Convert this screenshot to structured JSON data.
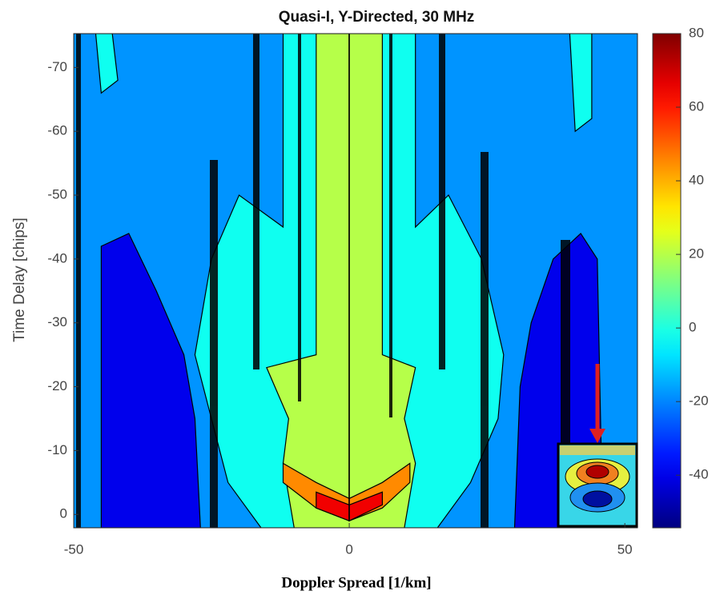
{
  "chart_data": {
    "type": "contour",
    "title": "Quasi-I, Y-Directed, 30 MHz",
    "xlabel": "Doppler Spread [1/km]",
    "ylabel": "Time Delay [chips]",
    "xlim": [
      -50,
      52.3
    ],
    "xticks": [
      -50,
      0,
      50
    ],
    "ylim": [
      2.1,
      -75.3
    ],
    "yticks": [
      0,
      -10,
      -20,
      -30,
      -40,
      -50,
      -60,
      -70
    ],
    "levels": [
      -40,
      -18,
      -2,
      20,
      45,
      65
    ],
    "colormap": "jet",
    "clim": [
      -54.3,
      80
    ],
    "cticks": [
      -40,
      -20,
      0,
      20,
      40,
      60,
      80
    ]
  }
}
